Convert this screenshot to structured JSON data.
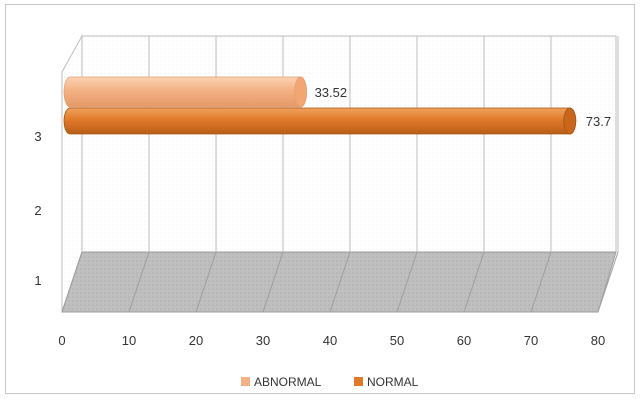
{
  "chart_data": {
    "type": "bar",
    "orientation": "horizontal",
    "style": "3d-cylinder",
    "categories": [
      "1",
      "2",
      "3"
    ],
    "series": [
      {
        "name": "ABNORMAL",
        "values": [
          null,
          null,
          33.52
        ],
        "color": "#F4B183"
      },
      {
        "name": "NORMAL",
        "values": [
          null,
          null,
          73.7
        ],
        "color": "#E07A2A"
      }
    ],
    "data_labels": [
      "33.52",
      "73.7"
    ],
    "xlim": [
      0,
      80
    ],
    "x_ticks": [
      "0",
      "10",
      "20",
      "30",
      "40",
      "50",
      "60",
      "70",
      "80"
    ],
    "y_ticks": [
      "1",
      "2",
      "3"
    ],
    "grid": true,
    "legend_position": "bottom",
    "floor_color": "#BFBFBF",
    "title": "",
    "xlabel": "",
    "ylabel": ""
  }
}
